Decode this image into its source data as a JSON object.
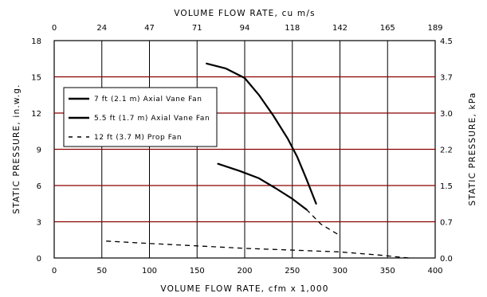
{
  "chart_data": {
    "type": "line",
    "title": "",
    "xlabel": "VOLUME FLOW RATE, cfm x 1,000",
    "ylabel": "STATIC PRESSURE, in.w.g.",
    "x2label": "VOLUME FLOW RATE, cu m/s",
    "y2label": "STATIC PRESSURE, kPa",
    "xlim": [
      0,
      400
    ],
    "ylim": [
      0,
      18
    ],
    "x_ticks": [
      "0",
      "50",
      "100",
      "150",
      "200",
      "250",
      "300",
      "350",
      "400"
    ],
    "y_ticks": [
      "0",
      "3",
      "6",
      "9",
      "12",
      "15",
      "18"
    ],
    "x2_ticks": [
      "0",
      "24",
      "47",
      "71",
      "94",
      "118",
      "142",
      "165",
      "189"
    ],
    "y2_ticks": [
      "0.0",
      "0.7",
      "1.5",
      "2.2",
      "3.0",
      "3.7",
      "4.5"
    ],
    "grid": true,
    "grid_color": "#8b0000",
    "legend_position": "upper-left",
    "series": [
      {
        "name": "7 ft (2.1 m)  Axial Vane Fan",
        "style": "solid",
        "x": [
          172,
          195,
          215,
          232,
          250,
          265
        ],
        "y": [
          7.8,
          7.2,
          6.6,
          5.8,
          4.9,
          4.0
        ]
      },
      {
        "name": "5.5 ft (1.7 m)  Axial Vane Fan",
        "style": "solid",
        "x": [
          160,
          180,
          200,
          215,
          230,
          245,
          255,
          265,
          275
        ],
        "y": [
          16.1,
          15.7,
          14.9,
          13.5,
          11.8,
          9.9,
          8.4,
          6.5,
          4.5
        ]
      },
      {
        "name": "12 ft (3.7 M) Prop Fan",
        "style": "dashed",
        "x": [
          55,
          100,
          150,
          200,
          250,
          300,
          340,
          372
        ],
        "y": [
          1.4,
          1.2,
          1.0,
          0.8,
          0.65,
          0.5,
          0.25,
          0.0
        ]
      },
      {
        "name": "",
        "style": "dashed",
        "x": [
          265,
          280,
          297
        ],
        "y": [
          4.0,
          2.8,
          2.0
        ]
      }
    ]
  }
}
